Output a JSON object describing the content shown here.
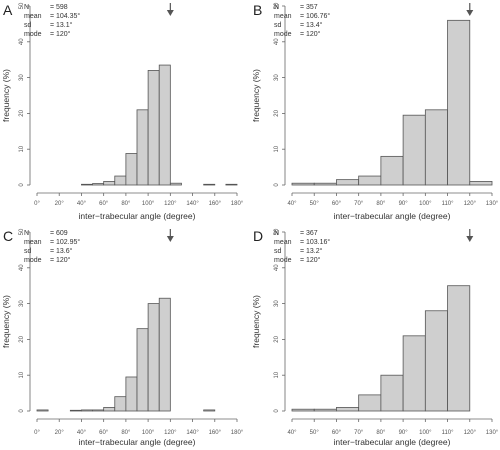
{
  "chart_data": [
    {
      "type": "bar",
      "panel": "A",
      "stats": [
        {
          "label": "N",
          "sep": "=",
          "value": "598"
        },
        {
          "label": "mean",
          "sep": "=",
          "value": "104.35°"
        },
        {
          "label": "sd",
          "sep": "=",
          "value": "13.1°"
        },
        {
          "label": "mode",
          "sep": "=",
          "value": "120°"
        }
      ],
      "xlabel": "inter−trabecular angle (degree)",
      "ylabel": "frequency (%)",
      "xlim": [
        0,
        180
      ],
      "ylim": [
        0,
        50
      ],
      "xticks": [
        0,
        20,
        40,
        60,
        80,
        100,
        120,
        140,
        160,
        180
      ],
      "xtick_labels": [
        "0°",
        "20°",
        "40°",
        "60°",
        "80°",
        "100°",
        "120°",
        "140°",
        "160°",
        "180°"
      ],
      "yticks": [
        0,
        10,
        20,
        30,
        40,
        50
      ],
      "bins": [
        [
          40,
          50
        ],
        [
          50,
          60
        ],
        [
          60,
          70
        ],
        [
          70,
          80
        ],
        [
          80,
          90
        ],
        [
          90,
          100
        ],
        [
          100,
          110
        ],
        [
          110,
          120
        ],
        [
          120,
          130
        ],
        [
          150,
          160
        ],
        [
          170,
          180
        ]
      ],
      "values": [
        0.2,
        0.4,
        1.0,
        2.5,
        8.8,
        21.0,
        32.0,
        33.5,
        0.5,
        0.2,
        0.2
      ],
      "arrow_x": 120
    },
    {
      "type": "bar",
      "panel": "B",
      "stats": [
        {
          "label": "N",
          "sep": "=",
          "value": "357"
        },
        {
          "label": "mean",
          "sep": "=",
          "value": "106.76°"
        },
        {
          "label": "sd",
          "sep": "=",
          "value": "13.4°"
        },
        {
          "label": "mode",
          "sep": "=",
          "value": "120°"
        }
      ],
      "xlabel": "inter−trabecular angle (degree)",
      "ylabel": "frequency (%)",
      "xlim": [
        40,
        130
      ],
      "ylim": [
        0,
        50
      ],
      "xticks": [
        40,
        50,
        60,
        70,
        80,
        90,
        100,
        110,
        120,
        130
      ],
      "xtick_labels": [
        "40°",
        "50°",
        "60°",
        "70°",
        "80°",
        "90°",
        "100°",
        "110°",
        "120°",
        "130°"
      ],
      "yticks": [
        0,
        10,
        20,
        30,
        40,
        50
      ],
      "bins": [
        [
          40,
          50
        ],
        [
          50,
          60
        ],
        [
          60,
          70
        ],
        [
          70,
          80
        ],
        [
          80,
          90
        ],
        [
          90,
          100
        ],
        [
          100,
          110
        ],
        [
          110,
          120
        ],
        [
          120,
          130
        ]
      ],
      "values": [
        0.5,
        0.5,
        1.5,
        2.5,
        8.0,
        19.5,
        21.0,
        46.0,
        1.0
      ],
      "arrow_x": 120
    },
    {
      "type": "bar",
      "panel": "C",
      "stats": [
        {
          "label": "N",
          "sep": "=",
          "value": "609"
        },
        {
          "label": "mean",
          "sep": "=",
          "value": "102.95°"
        },
        {
          "label": "sd",
          "sep": "=",
          "value": "13.6°"
        },
        {
          "label": "mode",
          "sep": "=",
          "value": "120°"
        }
      ],
      "xlabel": "inter−trabecular angle (degree)",
      "ylabel": "frequency (%)",
      "xlim": [
        0,
        180
      ],
      "ylim": [
        0,
        50
      ],
      "xticks": [
        0,
        20,
        40,
        60,
        80,
        100,
        120,
        140,
        160,
        180
      ],
      "xtick_labels": [
        "0°",
        "20°",
        "40°",
        "60°",
        "80°",
        "100°",
        "120°",
        "140°",
        "160°",
        "180°"
      ],
      "yticks": [
        0,
        10,
        20,
        30,
        40,
        50
      ],
      "bins": [
        [
          0,
          10
        ],
        [
          30,
          40
        ],
        [
          40,
          50
        ],
        [
          50,
          60
        ],
        [
          60,
          70
        ],
        [
          70,
          80
        ],
        [
          80,
          90
        ],
        [
          90,
          100
        ],
        [
          100,
          110
        ],
        [
          110,
          120
        ],
        [
          150,
          160
        ]
      ],
      "values": [
        0.3,
        0.2,
        0.3,
        0.3,
        1.0,
        4.0,
        9.5,
        23.0,
        30.0,
        31.5,
        0.3
      ],
      "arrow_x": 120
    },
    {
      "type": "bar",
      "panel": "D",
      "stats": [
        {
          "label": "N",
          "sep": "=",
          "value": "367"
        },
        {
          "label": "mean",
          "sep": "=",
          "value": "103.16°"
        },
        {
          "label": "sd",
          "sep": "=",
          "value": "13.2°"
        },
        {
          "label": "mode",
          "sep": "=",
          "value": "120°"
        }
      ],
      "xlabel": "inter−trabecular angle (degree)",
      "ylabel": "frequency (%)",
      "xlim": [
        40,
        130
      ],
      "ylim": [
        0,
        50
      ],
      "xticks": [
        40,
        50,
        60,
        70,
        80,
        90,
        100,
        110,
        120,
        130
      ],
      "xtick_labels": [
        "40°",
        "50°",
        "60°",
        "70°",
        "80°",
        "90°",
        "100°",
        "110°",
        "120°",
        "130°"
      ],
      "yticks": [
        0,
        10,
        20,
        30,
        40,
        50
      ],
      "bins": [
        [
          40,
          50
        ],
        [
          50,
          60
        ],
        [
          60,
          70
        ],
        [
          70,
          80
        ],
        [
          80,
          90
        ],
        [
          90,
          100
        ],
        [
          100,
          110
        ],
        [
          110,
          120
        ]
      ],
      "values": [
        0.5,
        0.5,
        1.0,
        4.5,
        10.0,
        21.0,
        28.0,
        35.0
      ],
      "arrow_x": 120
    }
  ]
}
